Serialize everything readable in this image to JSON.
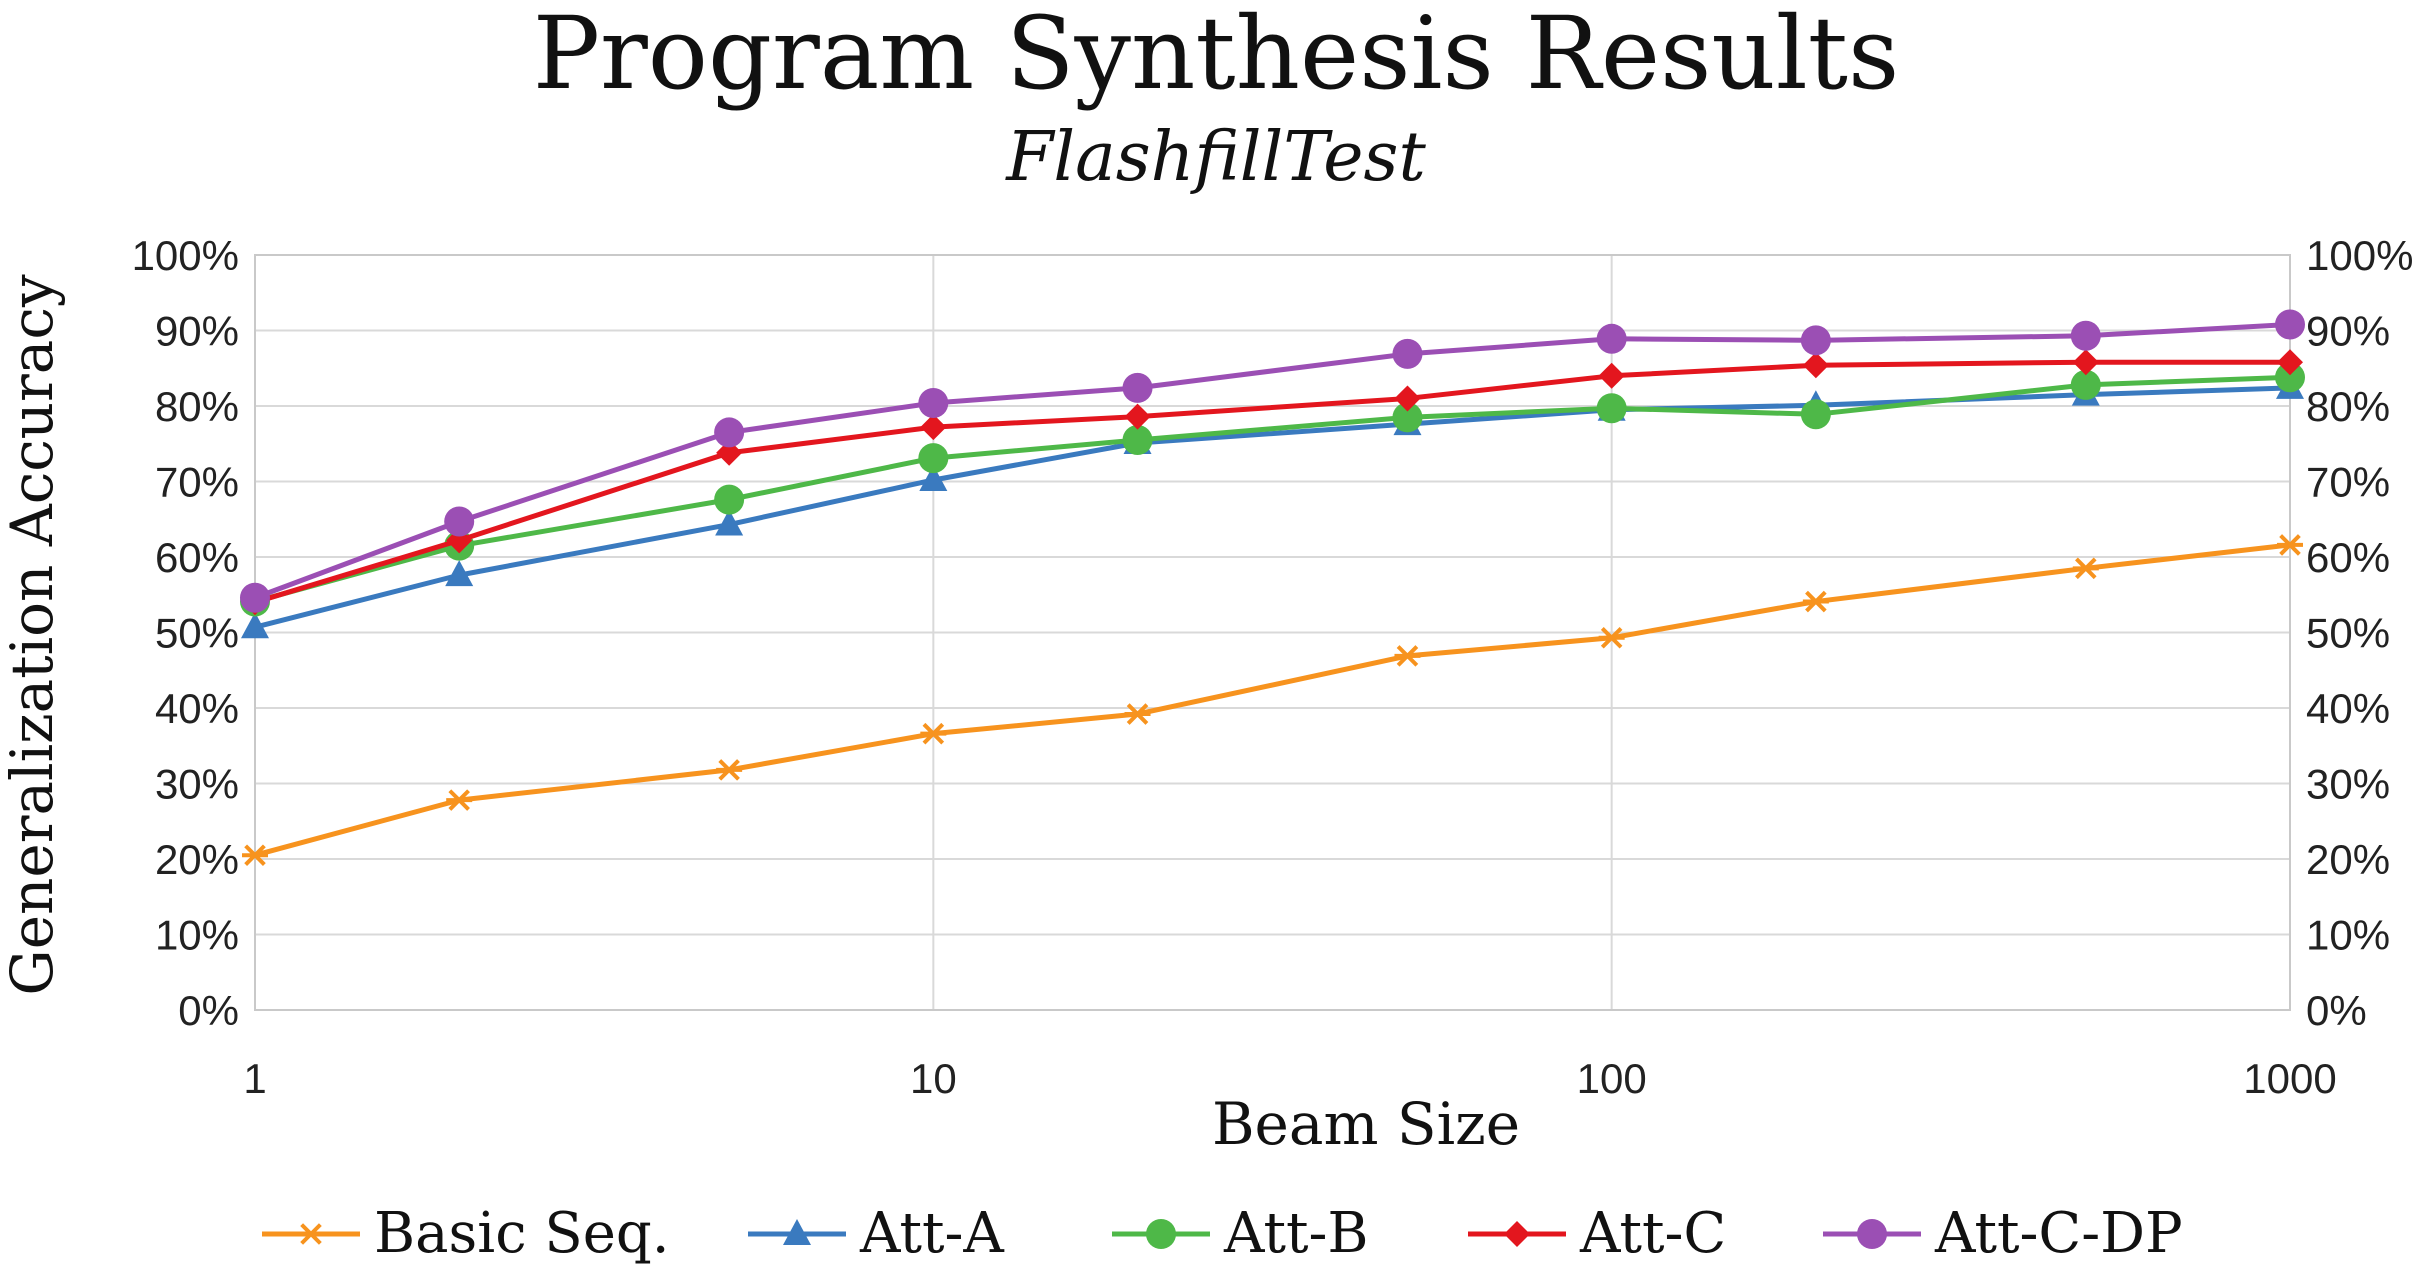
{
  "chart_data": {
    "type": "line",
    "title": "Program Synthesis Results",
    "subtitle": "FlashfillTest",
    "xlabel": "Beam Size",
    "ylabel": "Generalization Accuracy",
    "xscale": "log",
    "xlim": [
      1,
      1000
    ],
    "ylim": [
      0,
      100
    ],
    "x_ticks": [
      "1",
      "10",
      "100",
      "1000"
    ],
    "y_ticks": [
      "0%",
      "10%",
      "20%",
      "30%",
      "40%",
      "50%",
      "60%",
      "70%",
      "80%",
      "90%",
      "100%"
    ],
    "y_ticks_right": [
      "0%",
      "10%",
      "20%",
      "30%",
      "40%",
      "50%",
      "60%",
      "70%",
      "80%",
      "90%",
      "100%"
    ],
    "grid": true,
    "legend_position": "bottom",
    "x": [
      1,
      2,
      5,
      10,
      20,
      50,
      100,
      200,
      500,
      1000
    ],
    "series": [
      {
        "name": "Basic Seq.",
        "color": "#f7931e",
        "marker": "star",
        "values": [
          20.5,
          27.8,
          31.8,
          36.6,
          39.2,
          46.9,
          49.3,
          54.1,
          58.5,
          61.6
        ]
      },
      {
        "name": "Att-A",
        "color": "#3a7abf",
        "marker": "triangle",
        "values": [
          50.7,
          57.6,
          64.3,
          70.2,
          75.1,
          77.6,
          79.5,
          80.1,
          81.5,
          82.4
        ]
      },
      {
        "name": "Att-B",
        "color": "#4eb848",
        "marker": "circle",
        "values": [
          54.1,
          61.5,
          67.6,
          73.1,
          75.5,
          78.5,
          79.7,
          78.9,
          82.8,
          83.8
        ]
      },
      {
        "name": "Att-C",
        "color": "#e3161e",
        "marker": "diamond",
        "values": [
          54.0,
          62.2,
          73.8,
          77.2,
          78.6,
          81.0,
          84.0,
          85.4,
          85.8,
          85.8
        ]
      },
      {
        "name": "Att-C-DP",
        "color": "#9b4fb4",
        "marker": "circle",
        "values": [
          54.6,
          64.7,
          76.5,
          80.4,
          82.4,
          86.9,
          88.9,
          88.7,
          89.3,
          90.8
        ]
      }
    ]
  }
}
